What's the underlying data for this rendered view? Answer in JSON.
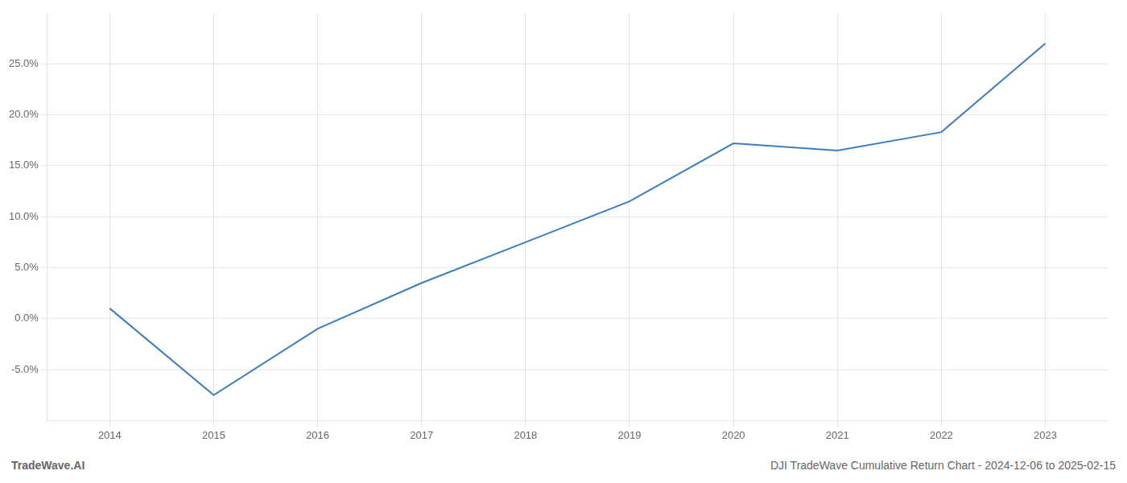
{
  "chart_data": {
    "type": "line",
    "x": [
      2014,
      2015,
      2016,
      2017,
      2018,
      2019,
      2020,
      2021,
      2022,
      2023
    ],
    "values": [
      1.0,
      -7.5,
      -1.0,
      3.5,
      7.5,
      11.5,
      17.2,
      16.5,
      18.3,
      27.0
    ],
    "color": "#3a7ebf",
    "xlim": [
      2013.4,
      2023.6
    ],
    "xticks": [
      2014,
      2015,
      2016,
      2017,
      2018,
      2019,
      2020,
      2021,
      2022,
      2023
    ],
    "ylim": [
      -10,
      30
    ],
    "yticks": [
      {
        "value": -5,
        "label": "-5.0%"
      },
      {
        "value": 0,
        "label": "0.0%"
      },
      {
        "value": 5,
        "label": "5.0%"
      },
      {
        "value": 10,
        "label": "10.0%"
      },
      {
        "value": 15,
        "label": "15.0%"
      },
      {
        "value": 20,
        "label": "20.0%"
      },
      {
        "value": 25,
        "label": "25.0%"
      }
    ],
    "grid": true,
    "annotations": [
      "TradeWave.AI",
      "DJI TradeWave Cumulative Return Chart - 2024-12-06 to 2025-02-15"
    ]
  }
}
